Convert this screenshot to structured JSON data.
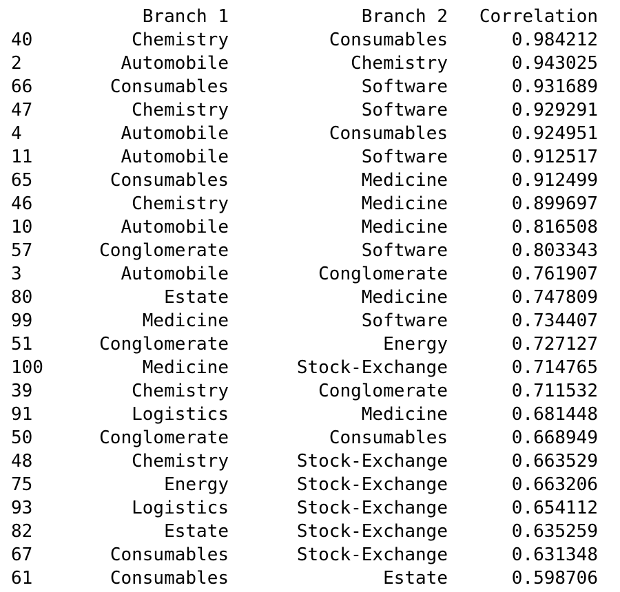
{
  "table": {
    "columns": {
      "index": "",
      "branch1": "Branch 1",
      "branch2": "Branch 2",
      "correlation": "Correlation"
    },
    "rows": [
      {
        "index": "40",
        "branch1": "Chemistry",
        "branch2": "Consumables",
        "correlation": "0.984212"
      },
      {
        "index": "2",
        "branch1": "Automobile",
        "branch2": "Chemistry",
        "correlation": "0.943025"
      },
      {
        "index": "66",
        "branch1": "Consumables",
        "branch2": "Software",
        "correlation": "0.931689"
      },
      {
        "index": "47",
        "branch1": "Chemistry",
        "branch2": "Software",
        "correlation": "0.929291"
      },
      {
        "index": "4",
        "branch1": "Automobile",
        "branch2": "Consumables",
        "correlation": "0.924951"
      },
      {
        "index": "11",
        "branch1": "Automobile",
        "branch2": "Software",
        "correlation": "0.912517"
      },
      {
        "index": "65",
        "branch1": "Consumables",
        "branch2": "Medicine",
        "correlation": "0.912499"
      },
      {
        "index": "46",
        "branch1": "Chemistry",
        "branch2": "Medicine",
        "correlation": "0.899697"
      },
      {
        "index": "10",
        "branch1": "Automobile",
        "branch2": "Medicine",
        "correlation": "0.816508"
      },
      {
        "index": "57",
        "branch1": "Conglomerate",
        "branch2": "Software",
        "correlation": "0.803343"
      },
      {
        "index": "3",
        "branch1": "Automobile",
        "branch2": "Conglomerate",
        "correlation": "0.761907"
      },
      {
        "index": "80",
        "branch1": "Estate",
        "branch2": "Medicine",
        "correlation": "0.747809"
      },
      {
        "index": "99",
        "branch1": "Medicine",
        "branch2": "Software",
        "correlation": "0.734407"
      },
      {
        "index": "51",
        "branch1": "Conglomerate",
        "branch2": "Energy",
        "correlation": "0.727127"
      },
      {
        "index": "100",
        "branch1": "Medicine",
        "branch2": "Stock-Exchange",
        "correlation": "0.714765"
      },
      {
        "index": "39",
        "branch1": "Chemistry",
        "branch2": "Conglomerate",
        "correlation": "0.711532"
      },
      {
        "index": "91",
        "branch1": "Logistics",
        "branch2": "Medicine",
        "correlation": "0.681448"
      },
      {
        "index": "50",
        "branch1": "Conglomerate",
        "branch2": "Consumables",
        "correlation": "0.668949"
      },
      {
        "index": "48",
        "branch1": "Chemistry",
        "branch2": "Stock-Exchange",
        "correlation": "0.663529"
      },
      {
        "index": "75",
        "branch1": "Energy",
        "branch2": "Stock-Exchange",
        "correlation": "0.663206"
      },
      {
        "index": "93",
        "branch1": "Logistics",
        "branch2": "Stock-Exchange",
        "correlation": "0.654112"
      },
      {
        "index": "82",
        "branch1": "Estate",
        "branch2": "Stock-Exchange",
        "correlation": "0.635259"
      },
      {
        "index": "67",
        "branch1": "Consumables",
        "branch2": "Stock-Exchange",
        "correlation": "0.631348"
      },
      {
        "index": "61",
        "branch1": "Consumables",
        "branch2": "Estate",
        "correlation": "0.598706"
      }
    ]
  }
}
